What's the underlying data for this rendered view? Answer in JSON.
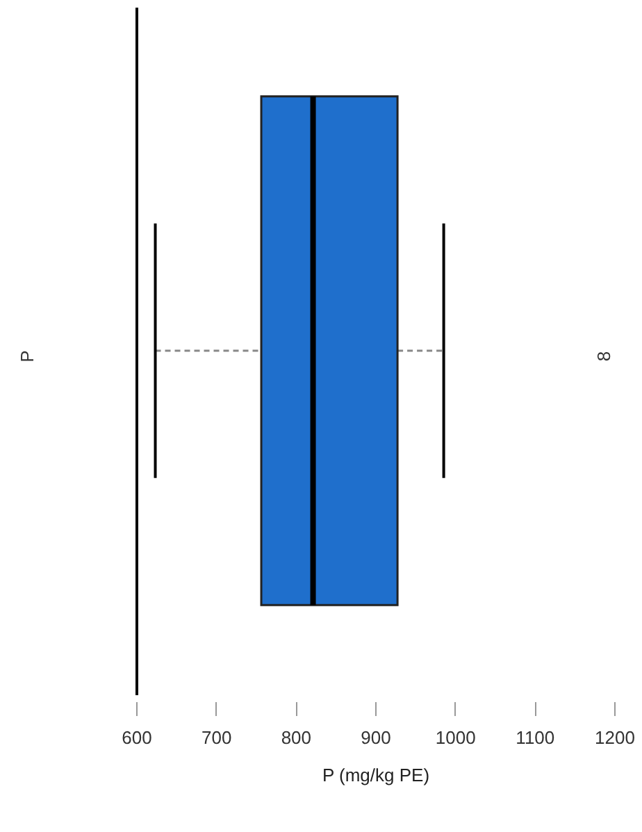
{
  "chart_data": {
    "type": "box",
    "orientation": "horizontal",
    "categories": [
      null
    ],
    "series": [
      {
        "color": "#1f6fcc",
        "boxes": [
          {
            "low": 624,
            "q1": 757,
            "median": 822,
            "q3": 928,
            "high": 986
          }
        ]
      }
    ],
    "xlabel": "P (mg/kg PE)",
    "xlim": [
      600,
      1200
    ],
    "xticks": [
      600,
      700,
      800,
      900,
      1000,
      1100,
      1200
    ],
    "annotations": [
      "P",
      "8"
    ]
  }
}
